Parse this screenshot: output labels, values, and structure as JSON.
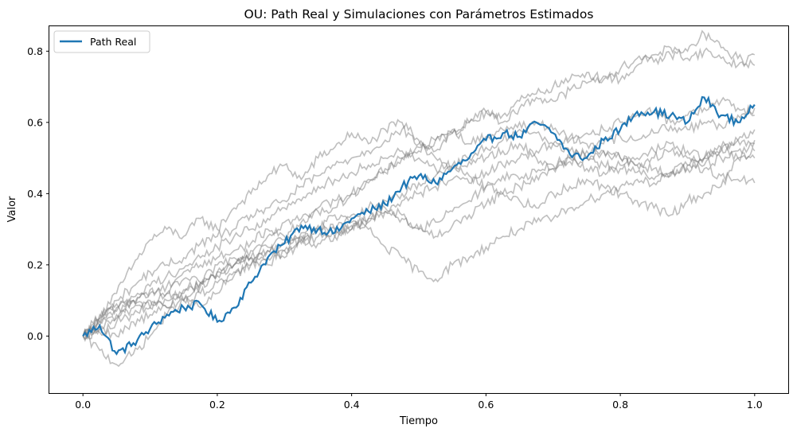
{
  "chart_data": {
    "type": "line",
    "title": "OU: Path Real y Simulaciones con Parámetros Estimados",
    "xlabel": "Tiempo",
    "ylabel": "Valor",
    "xlim": [
      -0.05,
      1.05
    ],
    "ylim": [
      -0.16,
      0.87
    ],
    "xticks": [
      0.0,
      0.2,
      0.4,
      0.6,
      0.8,
      1.0
    ],
    "xtick_labels": [
      "0.0",
      "0.2",
      "0.4",
      "0.6",
      "0.8",
      "1.0"
    ],
    "yticks": [
      0.0,
      0.2,
      0.4,
      0.6,
      0.8
    ],
    "ytick_labels": [
      "0.0",
      "0.2",
      "0.4",
      "0.6",
      "0.8"
    ],
    "grid": false,
    "legend": {
      "position": "top-left",
      "entries": [
        "Path Real"
      ]
    },
    "x": [
      0.0,
      0.025,
      0.05,
      0.075,
      0.1,
      0.125,
      0.15,
      0.175,
      0.2,
      0.225,
      0.25,
      0.275,
      0.3,
      0.325,
      0.35,
      0.375,
      0.4,
      0.425,
      0.45,
      0.475,
      0.5,
      0.525,
      0.55,
      0.575,
      0.6,
      0.625,
      0.65,
      0.675,
      0.7,
      0.725,
      0.75,
      0.775,
      0.8,
      0.825,
      0.85,
      0.875,
      0.9,
      0.925,
      0.95,
      0.975,
      1.0
    ],
    "series": [
      {
        "name": "Path Real",
        "color": "#1f77b4",
        "values": [
          0.0,
          0.03,
          -0.05,
          -0.02,
          0.02,
          0.06,
          0.08,
          0.09,
          0.04,
          0.08,
          0.15,
          0.22,
          0.26,
          0.31,
          0.3,
          0.29,
          0.33,
          0.35,
          0.37,
          0.42,
          0.45,
          0.43,
          0.47,
          0.5,
          0.55,
          0.57,
          0.56,
          0.6,
          0.57,
          0.51,
          0.5,
          0.55,
          0.58,
          0.63,
          0.63,
          0.62,
          0.6,
          0.67,
          0.62,
          0.6,
          0.65
        ]
      },
      {
        "color": "#808080",
        "values": [
          0.0,
          0.06,
          0.12,
          0.2,
          0.27,
          0.3,
          0.28,
          0.33,
          0.3,
          0.36,
          0.4,
          0.45,
          0.48,
          0.44,
          0.5,
          0.53,
          0.57,
          0.54,
          0.58,
          0.6,
          0.55,
          0.52,
          0.57,
          0.6,
          0.63,
          0.62,
          0.66,
          0.68,
          0.7,
          0.72,
          0.74,
          0.72,
          0.75,
          0.78,
          0.77,
          0.79,
          0.8,
          0.85,
          0.81,
          0.78,
          0.76
        ]
      },
      {
        "color": "#808080",
        "values": [
          0.0,
          0.03,
          0.06,
          0.1,
          0.08,
          0.12,
          0.16,
          0.15,
          0.2,
          0.22,
          0.24,
          0.28,
          0.32,
          0.33,
          0.35,
          0.36,
          0.4,
          0.43,
          0.46,
          0.5,
          0.53,
          0.55,
          0.57,
          0.6,
          0.63,
          0.6,
          0.64,
          0.67,
          0.66,
          0.69,
          0.71,
          0.73,
          0.72,
          0.76,
          0.79,
          0.81,
          0.78,
          0.8,
          0.78,
          0.76,
          0.79
        ]
      },
      {
        "color": "#808080",
        "values": [
          0.0,
          -0.04,
          -0.08,
          -0.05,
          0.0,
          0.06,
          0.1,
          0.08,
          0.12,
          0.18,
          0.2,
          0.24,
          0.22,
          0.27,
          0.3,
          0.34,
          0.32,
          0.3,
          0.25,
          0.22,
          0.18,
          0.16,
          0.2,
          0.22,
          0.25,
          0.28,
          0.3,
          0.32,
          0.33,
          0.36,
          0.38,
          0.4,
          0.42,
          0.44,
          0.43,
          0.46,
          0.48,
          0.47,
          0.45,
          0.44,
          0.43
        ]
      },
      {
        "color": "#808080",
        "values": [
          0.0,
          0.04,
          0.1,
          0.14,
          0.18,
          0.2,
          0.22,
          0.26,
          0.28,
          0.3,
          0.34,
          0.36,
          0.38,
          0.42,
          0.45,
          0.48,
          0.5,
          0.52,
          0.55,
          0.58,
          0.54,
          0.5,
          0.47,
          0.45,
          0.42,
          0.4,
          0.38,
          0.36,
          0.4,
          0.42,
          0.44,
          0.42,
          0.4,
          0.38,
          0.36,
          0.34,
          0.38,
          0.4,
          0.42,
          0.5,
          0.55
        ]
      },
      {
        "color": "#808080",
        "values": [
          0.0,
          0.05,
          0.08,
          0.1,
          0.12,
          0.14,
          0.18,
          0.2,
          0.22,
          0.24,
          0.26,
          0.3,
          0.28,
          0.32,
          0.36,
          0.38,
          0.4,
          0.44,
          0.47,
          0.5,
          0.52,
          0.55,
          0.58,
          0.54,
          0.56,
          0.58,
          0.6,
          0.57,
          0.54,
          0.52,
          0.5,
          0.48,
          0.47,
          0.46,
          0.44,
          0.46,
          0.48,
          0.5,
          0.52,
          0.55,
          0.58
        ]
      },
      {
        "color": "#808080",
        "values": [
          0.0,
          0.02,
          0.05,
          0.08,
          0.1,
          0.08,
          0.12,
          0.15,
          0.17,
          0.2,
          0.22,
          0.25,
          0.27,
          0.26,
          0.28,
          0.3,
          0.3,
          0.32,
          0.35,
          0.38,
          0.4,
          0.42,
          0.44,
          0.43,
          0.46,
          0.48,
          0.5,
          0.52,
          0.54,
          0.55,
          0.57,
          0.58,
          0.6,
          0.62,
          0.63,
          0.6,
          0.62,
          0.64,
          0.66,
          0.64,
          0.62
        ]
      },
      {
        "color": "#808080",
        "values": [
          0.0,
          0.04,
          0.07,
          0.1,
          0.13,
          0.12,
          0.1,
          0.14,
          0.18,
          0.2,
          0.22,
          0.2,
          0.24,
          0.28,
          0.3,
          0.28,
          0.3,
          0.33,
          0.36,
          0.34,
          0.3,
          0.32,
          0.35,
          0.38,
          0.42,
          0.45,
          0.44,
          0.46,
          0.48,
          0.5,
          0.47,
          0.46,
          0.48,
          0.5,
          0.52,
          0.54,
          0.52,
          0.5,
          0.53,
          0.55,
          0.54
        ]
      },
      {
        "color": "#808080",
        "values": [
          0.0,
          0.01,
          0.04,
          0.06,
          0.08,
          0.1,
          0.13,
          0.15,
          0.18,
          0.2,
          0.22,
          0.24,
          0.26,
          0.29,
          0.31,
          0.3,
          0.34,
          0.36,
          0.38,
          0.4,
          0.43,
          0.45,
          0.47,
          0.49,
          0.5,
          0.52,
          0.54,
          0.5,
          0.47,
          0.49,
          0.5,
          0.52,
          0.5,
          0.48,
          0.5,
          0.52,
          0.5,
          0.48,
          0.5,
          0.52,
          0.5
        ]
      },
      {
        "color": "#808080",
        "values": [
          0.0,
          0.05,
          0.09,
          0.11,
          0.14,
          0.17,
          0.19,
          0.22,
          0.25,
          0.28,
          0.3,
          0.33,
          0.36,
          0.38,
          0.42,
          0.44,
          0.46,
          0.48,
          0.5,
          0.52,
          0.5,
          0.47,
          0.48,
          0.5,
          0.53,
          0.55,
          0.58,
          0.6,
          0.58,
          0.56,
          0.54,
          0.52,
          0.5,
          0.48,
          0.47,
          0.45,
          0.47,
          0.5,
          0.53,
          0.5,
          0.52
        ]
      },
      {
        "color": "#808080",
        "values": [
          0.0,
          0.02,
          0.0,
          0.04,
          0.06,
          0.08,
          0.1,
          0.12,
          0.15,
          0.17,
          0.2,
          0.22,
          0.24,
          0.27,
          0.26,
          0.28,
          0.31,
          0.33,
          0.35,
          0.33,
          0.3,
          0.28,
          0.31,
          0.34,
          0.37,
          0.4,
          0.42,
          0.45,
          0.47,
          0.5,
          0.52,
          0.54,
          0.56,
          0.55,
          0.57,
          0.59,
          0.58,
          0.6,
          0.59,
          0.62,
          0.64
        ]
      }
    ]
  }
}
